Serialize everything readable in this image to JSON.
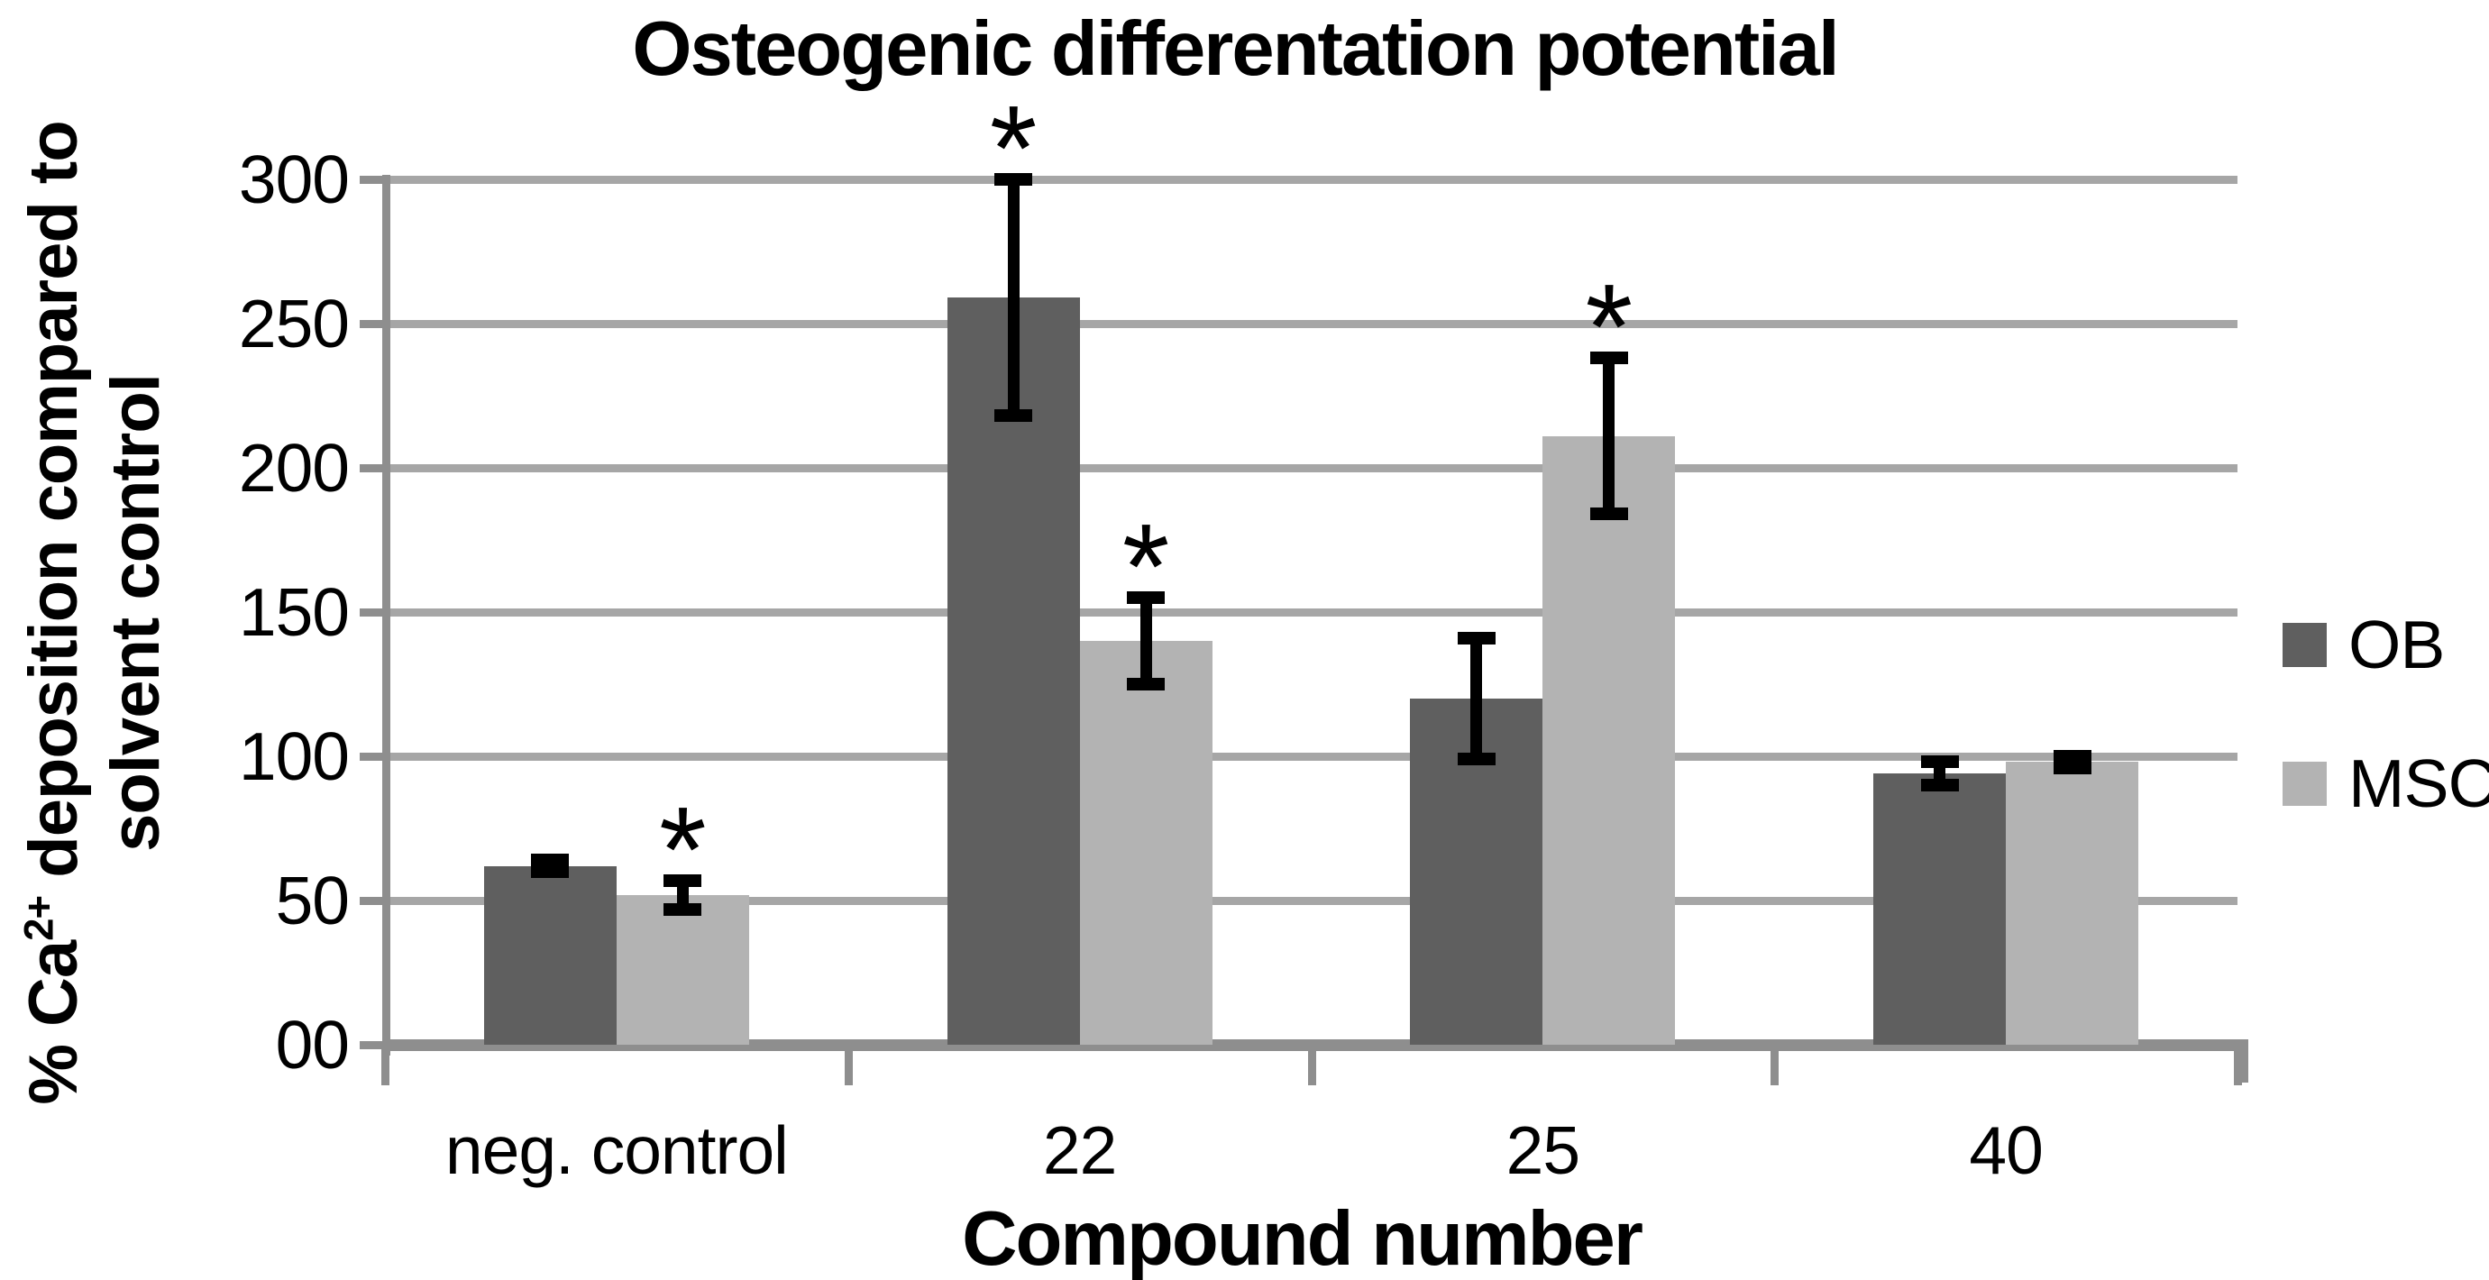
{
  "chart_data": {
    "type": "bar",
    "title": "Osteogenic differentation potential",
    "xlabel": "Compound number",
    "ylabel": "% Ca2+ deposition compared to solvent control",
    "ylabel_parts": {
      "line1_pre": "% Ca",
      "line1_sup": "2+",
      "line1_post": " deposition compared to",
      "line2": "solvent control"
    },
    "categories": [
      "neg. control",
      "22",
      "25",
      "40"
    ],
    "series": [
      {
        "name": "OB",
        "color": "#5f5f5f",
        "values": [
          62,
          259,
          120,
          94
        ],
        "errors": [
          2,
          41,
          21,
          4
        ],
        "significant": [
          false,
          true,
          false,
          false
        ]
      },
      {
        "name": "MSC",
        "color": "#b3b3b3",
        "values": [
          52,
          140,
          211,
          98
        ],
        "errors": [
          5,
          15,
          27,
          2
        ],
        "significant": [
          true,
          true,
          true,
          false
        ]
      }
    ],
    "ylim": [
      0,
      300
    ],
    "ytick_step": 50,
    "ytick_labels": [
      "00",
      "50",
      "100",
      "150",
      "200",
      "250",
      "300"
    ],
    "grid": true,
    "legend_position": "right",
    "significance_marker": "*",
    "style": {
      "grid_color": "#a6a6a6",
      "axis_color": "#8e8e8e",
      "error_bar_color": "#000000",
      "text_color": "#000000",
      "background": "#ffffff"
    }
  }
}
